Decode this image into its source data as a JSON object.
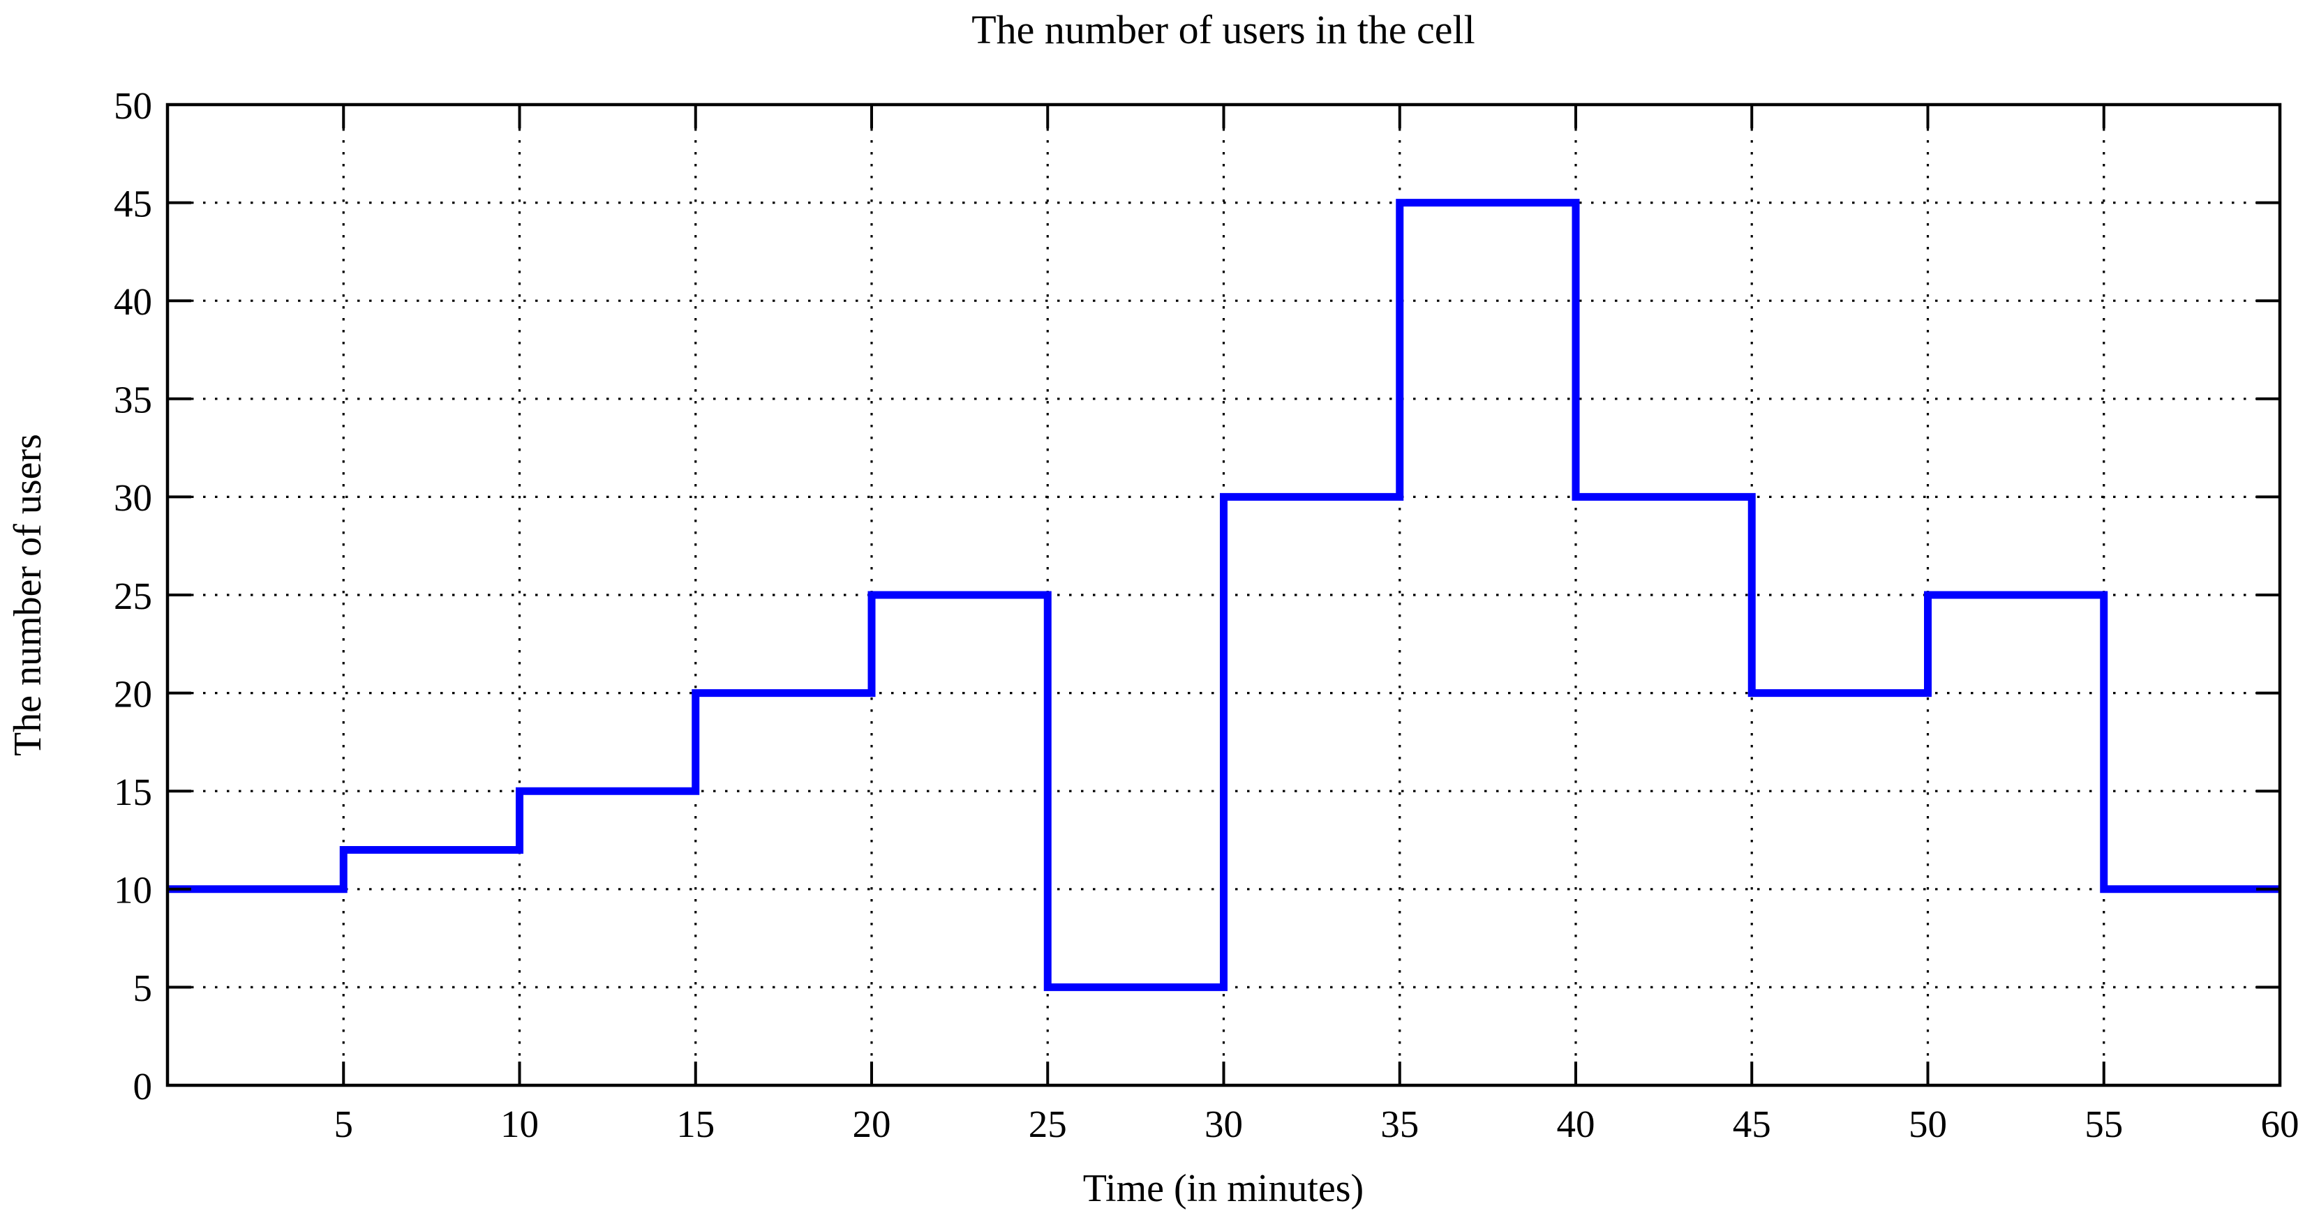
{
  "chart_data": {
    "type": "line",
    "subtype": "step",
    "title": "The number of users in the cell",
    "xlabel": "Time (in minutes)",
    "ylabel": "The number of users",
    "x_step_edges": [
      0,
      5,
      10,
      15,
      20,
      25,
      30,
      35,
      40,
      45,
      50,
      55,
      60
    ],
    "values": [
      10,
      12,
      15,
      20,
      25,
      5,
      30,
      45,
      30,
      20,
      25,
      10
    ],
    "xlim": [
      0,
      60
    ],
    "ylim": [
      0,
      50
    ],
    "x_ticks": [
      5,
      10,
      15,
      20,
      25,
      30,
      35,
      40,
      45,
      50,
      55,
      60
    ],
    "y_ticks": [
      0,
      5,
      10,
      15,
      20,
      25,
      30,
      35,
      40,
      45,
      50
    ],
    "grid": "dotted",
    "legend_position": "none",
    "colors": {
      "line": "#0000ff",
      "axis": "#000000",
      "grid": "#000000",
      "background": "#ffffff",
      "text": "#000000"
    }
  }
}
